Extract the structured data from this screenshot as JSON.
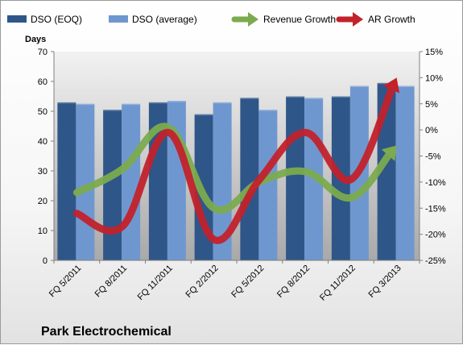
{
  "chart_data": {
    "type": "bar",
    "categories": [
      "FQ 5/2011",
      "FQ 8/2011",
      "FQ 11/2011",
      "FQ 2/2012",
      "FQ 5/2012",
      "FQ 8/2012",
      "FQ 11/2012",
      "FQ 3/2013"
    ],
    "series": [
      {
        "name": "DSO (EOQ)",
        "kind": "bar",
        "axis": "left",
        "color": "#2f5688",
        "values": [
          53,
          50.5,
          53,
          49,
          54.5,
          55,
          55,
          59.5
        ]
      },
      {
        "name": "DSO (average)",
        "kind": "bar",
        "axis": "left",
        "color": "#6f97cf",
        "values": [
          52.5,
          52.5,
          53.5,
          53,
          50.5,
          54.5,
          58.5,
          58.5
        ]
      },
      {
        "name": "Revenue Growth",
        "kind": "line-arrow",
        "axis": "right",
        "color": "#7bab4e",
        "values": [
          -12,
          -7.5,
          0.5,
          -15,
          -10,
          -8,
          -13,
          -3
        ]
      },
      {
        "name": "AR Growth",
        "kind": "line-arrow",
        "axis": "right",
        "color": "#c2222b",
        "values": [
          -16,
          -18.5,
          -0.5,
          -21,
          -9.5,
          -0.5,
          -9.5,
          10
        ]
      }
    ],
    "title": "",
    "company": "Park Electrochemical",
    "xlabel": "",
    "ylabel": "Days",
    "y_left": {
      "min": 0,
      "max": 70,
      "step": 10,
      "ticks": [
        "0",
        "10",
        "20",
        "30",
        "40",
        "50",
        "60",
        "70"
      ]
    },
    "y_right": {
      "min": -25,
      "max": 15,
      "step": 5,
      "ticks": [
        "-25%",
        "-20%",
        "-15%",
        "-10%",
        "-5%",
        "0%",
        "5%",
        "10%",
        "15%"
      ]
    },
    "legend_position": "top",
    "grid": false
  }
}
